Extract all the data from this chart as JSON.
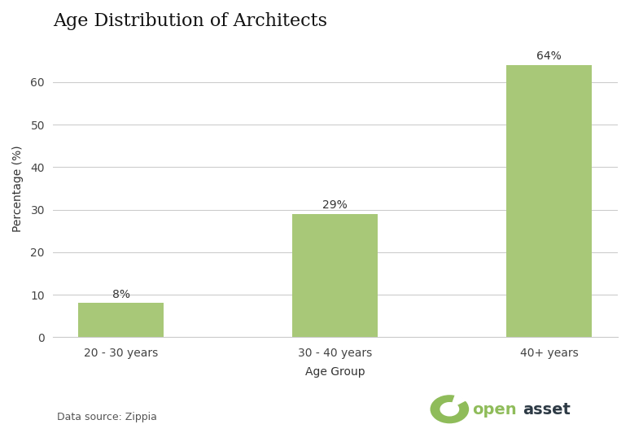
{
  "title": "Age Distribution of Architects",
  "categories": [
    "20 - 30 years",
    "30 - 40 years",
    "40+ years"
  ],
  "values": [
    8,
    29,
    64
  ],
  "labels": [
    "8%",
    "29%",
    "64%"
  ],
  "bar_color": "#a8c878",
  "xlabel": "Age Group",
  "ylabel": "Percentage (%)",
  "ylim": [
    0,
    70
  ],
  "yticks": [
    0,
    10,
    20,
    30,
    40,
    50,
    60
  ],
  "data_source": "Data source: Zippia",
  "background_color": "#ffffff",
  "title_fontsize": 16,
  "axis_label_fontsize": 10,
  "tick_fontsize": 10,
  "bar_label_fontsize": 10,
  "data_source_fontsize": 9,
  "openasset_green": "#8fbc5a",
  "openasset_dark": "#2d3a45",
  "grid_color": "#cccccc",
  "bar_width": 0.4
}
